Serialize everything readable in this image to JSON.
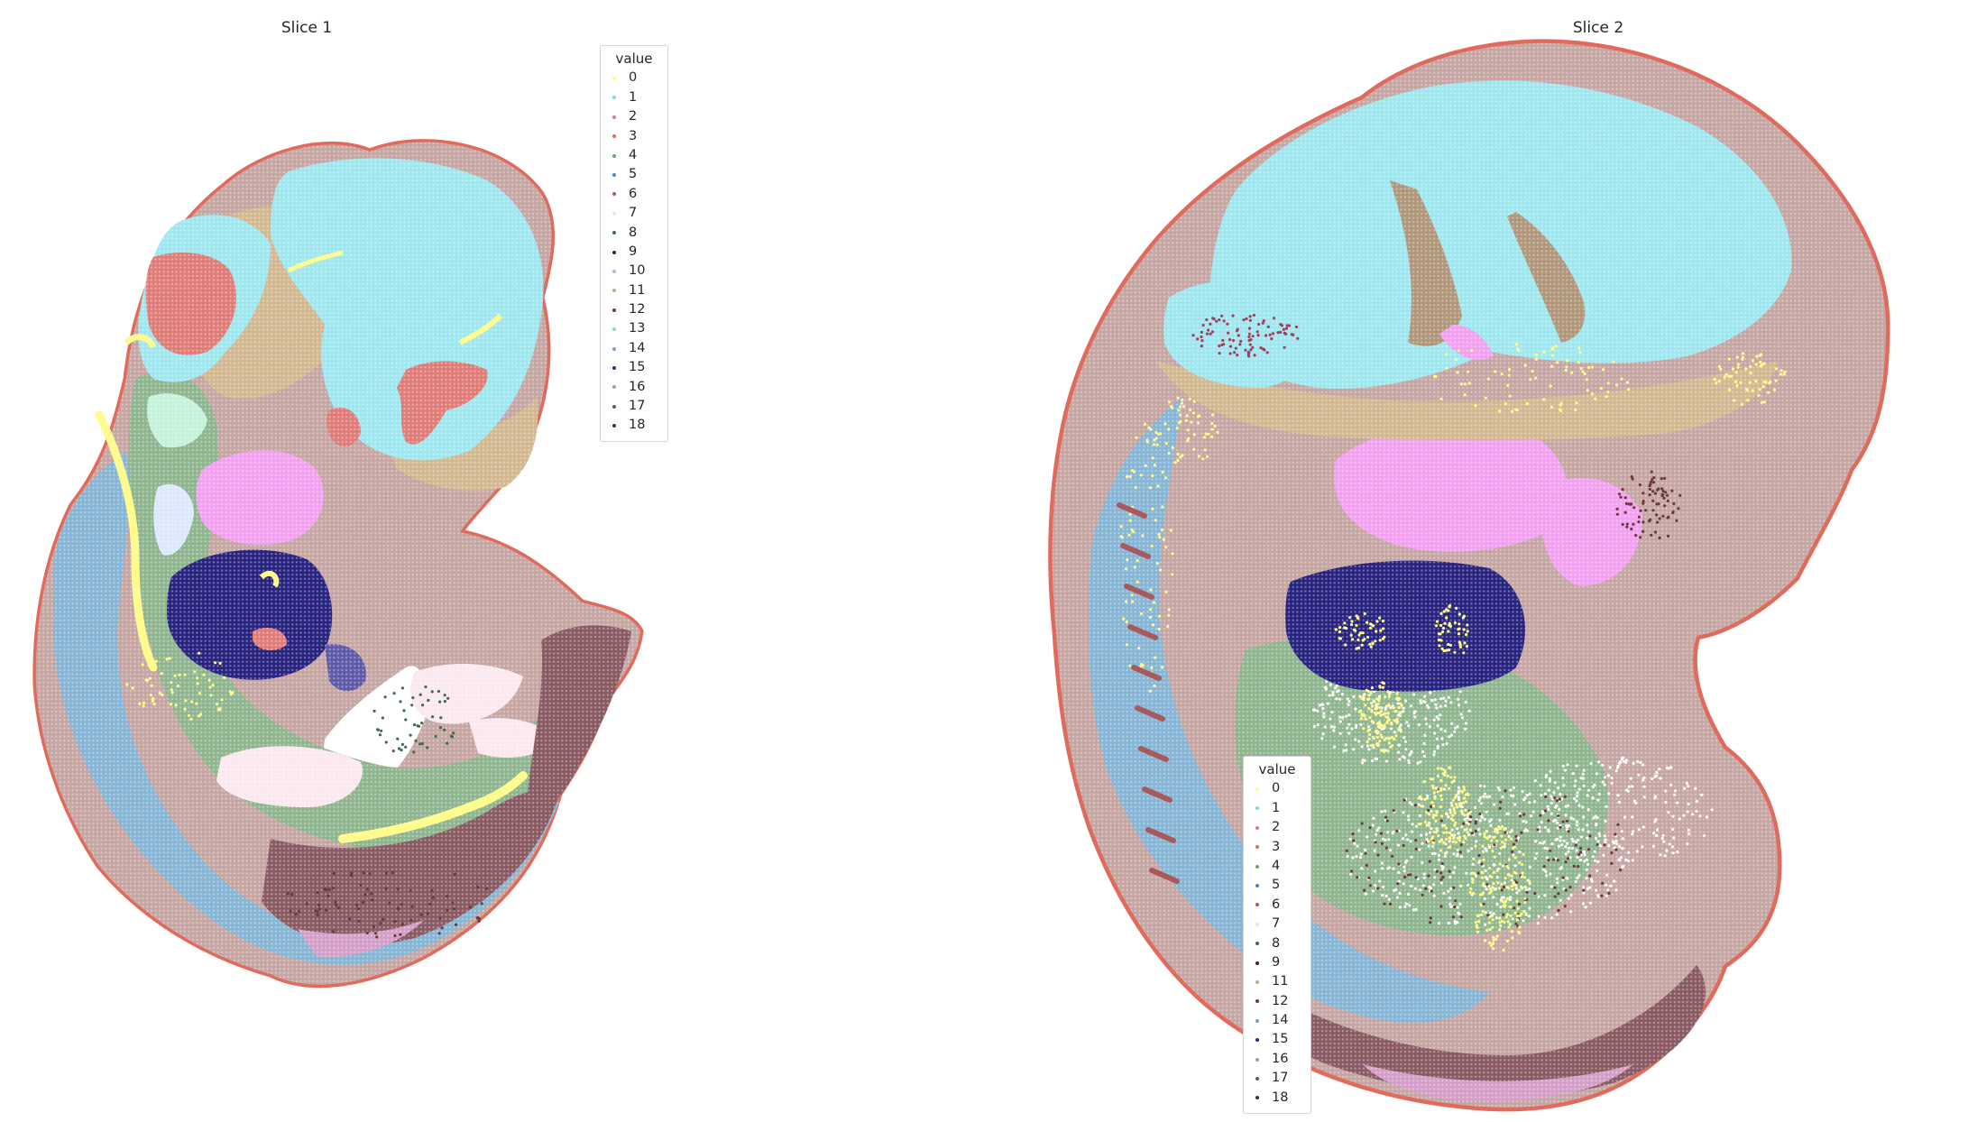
{
  "chart_data": [
    {
      "type": "scatter",
      "title": "Slice 1",
      "legend": {
        "title": "value",
        "position": "upper-right",
        "entries": [
          "0",
          "1",
          "2",
          "3",
          "4",
          "5",
          "6",
          "7",
          "8",
          "9",
          "10",
          "11",
          "12",
          "13",
          "14",
          "15",
          "16",
          "17",
          "18"
        ]
      },
      "axes_visible": false,
      "grid": false
    },
    {
      "type": "scatter",
      "title": "Slice 2",
      "legend": {
        "title": "value",
        "position": "lower-left",
        "entries": [
          "0",
          "1",
          "2",
          "3",
          "4",
          "5",
          "6",
          "7",
          "8",
          "9",
          "11",
          "12",
          "14",
          "15",
          "16",
          "17",
          "18"
        ]
      },
      "axes_visible": false,
      "grid": false
    }
  ],
  "palette": {
    "0": "#fffb8f",
    "1": "#86d5ef",
    "2": "#e26fae",
    "3": "#e06a5c",
    "4": "#6ea267",
    "5": "#4f82b8",
    "6": "#a85a5a",
    "7": "#d7e9ff",
    "8": "#3d6d4a",
    "9": "#4b1f33",
    "10": "#c7a7d8",
    "11": "#c4a98a",
    "12": "#6b3b3b",
    "13": "#8fd6b2",
    "14": "#7b9fc3",
    "15": "#2e2e7a",
    "16": "#b58fb2",
    "17": "#5d5d5d",
    "18": "#3b2b4b"
  },
  "region_colors": {
    "outline": "#e06a5c",
    "body": "#c6a6a3",
    "brain": "#9fe7ef",
    "brain_pink": "#e07c78",
    "tan": "#d2b890",
    "brown": "#b0967a",
    "green": "#8fb58f",
    "mint": "#c5f2da",
    "spine": "#86b5d5",
    "liver": "#27237f",
    "liver_edge": "#5f5aa8",
    "magenta": "#f2a0f0",
    "pale_pink": "#fbe8ef",
    "dark_maroon": "#8a5a62",
    "yellow": "#fffb8f",
    "mauve": "#d59ec8",
    "lavender": "#dde8ff",
    "grey_blue": "#a9c7de"
  }
}
